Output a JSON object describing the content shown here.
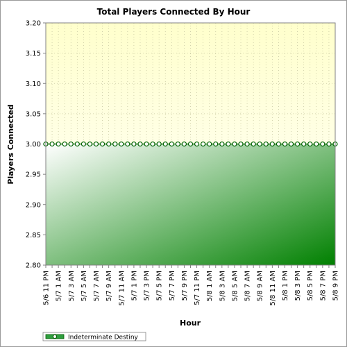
{
  "chart_data": {
    "type": "area",
    "title": "Total Players Connected By Hour",
    "xlabel": "Hour",
    "ylabel": "Players Connected",
    "ylim": [
      2.8,
      3.2
    ],
    "yticks": [
      "3.20",
      "3.15",
      "3.10",
      "3.05",
      "3.00",
      "2.95",
      "2.90",
      "2.85",
      "2.80"
    ],
    "categories": [
      "5/6 11 PM",
      "5/7 1 AM",
      "5/7 3 AM",
      "5/7 5 AM",
      "5/7 7 AM",
      "5/7 9 AM",
      "5/7 11 AM",
      "5/7 1 PM",
      "5/7 3 PM",
      "5/7 5 PM",
      "5/7 7 PM",
      "5/7 9 PM",
      "5/7 11 PM",
      "5/8 1 AM",
      "5/8 3 AM",
      "5/8 5 AM",
      "5/8 7 AM",
      "5/8 9 AM",
      "5/8 11 AM",
      "5/8 1 PM",
      "5/8 3 PM",
      "5/8 5 PM",
      "5/8 7 PM",
      "5/8 9 PM"
    ],
    "hours": 47,
    "gap_hour_index": 25,
    "grid": true,
    "legend_position": "bottom-left",
    "series": [
      {
        "name": "Indeterminate Destiny",
        "value": 3.0,
        "color": "#008000"
      }
    ]
  },
  "colors": {
    "plot_background_top": "#ffffcc",
    "plot_background_bottom": "#ffffff",
    "area_light": "#ffffff",
    "area_dark": "#008000",
    "marker": "#006400"
  }
}
